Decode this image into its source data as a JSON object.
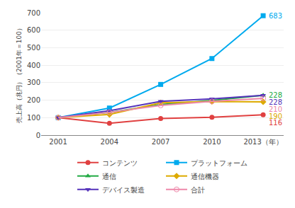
{
  "chart_data": {
    "type": "line",
    "x": [
      2001,
      2004,
      2007,
      2010,
      2013
    ],
    "xlim": [
      2000,
      2014.2
    ],
    "xticks": [
      2001,
      2004,
      2007,
      2010,
      {
        "value": 2013,
        "label": "2013（年）"
      }
    ],
    "ylabel": "売上高（兆円）（2001年＝100）",
    "ylim": [
      0,
      700
    ],
    "yticks": [
      0,
      100,
      200,
      300,
      400,
      500,
      600,
      700
    ],
    "grid": true,
    "legend": "bottom",
    "series": [
      {
        "name": "コンテンツ",
        "color": "#e04040",
        "marker": "circle",
        "values": [
          100,
          68,
          95,
          102,
          116
        ]
      },
      {
        "name": "プラットフォーム",
        "color": "#00aaee",
        "marker": "square",
        "values": [
          100,
          155,
          290,
          438,
          683
        ]
      },
      {
        "name": "通信",
        "color": "#22aa44",
        "marker": "triangle-up",
        "values": [
          100,
          130,
          175,
          198,
          228
        ]
      },
      {
        "name": "通信機器",
        "color": "#ddaa00",
        "marker": "diamond",
        "values": [
          100,
          118,
          185,
          192,
          190
        ]
      },
      {
        "name": "デバイス製造",
        "color": "#5533bb",
        "marker": "triangle-down",
        "values": [
          100,
          140,
          193,
          207,
          228
        ]
      },
      {
        "name": "合計",
        "color": "#ee88aa",
        "marker": "circle-open",
        "values": [
          100,
          130,
          170,
          193,
          210
        ]
      }
    ],
    "annotations": [
      {
        "series": "プラットフォーム",
        "text": "683"
      },
      {
        "series": "通信",
        "text": "228"
      },
      {
        "series": "デバイス製造",
        "text": "228"
      },
      {
        "series": "合計",
        "text": "210"
      },
      {
        "series": "通信機器",
        "text": "190"
      },
      {
        "series": "コンテンツ",
        "text": "116"
      }
    ]
  }
}
